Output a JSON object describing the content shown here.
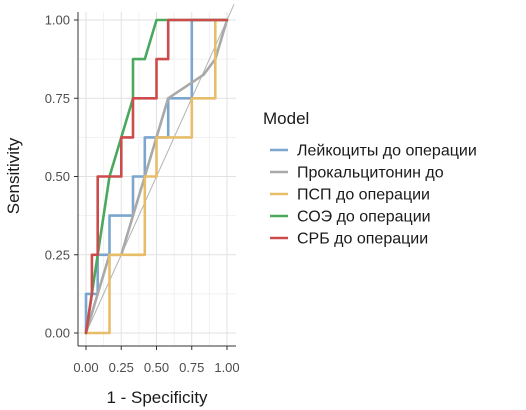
{
  "chart_data": {
    "type": "line",
    "xlabel": "1 - Specificity",
    "ylabel": "Sensitivity",
    "xlim": [
      0,
      1
    ],
    "ylim": [
      0,
      1
    ],
    "x_ticks": [
      "0.00",
      "0.25",
      "0.50",
      "0.75",
      "1.00"
    ],
    "y_ticks": [
      "0.00",
      "0.25",
      "0.50",
      "0.75",
      "1.00"
    ],
    "grid": true,
    "diagonal_reference": true,
    "legend": {
      "title": "Model",
      "position": "right"
    },
    "series": [
      {
        "name": "Лейкоциты до операции",
        "color": "#7ba6cf",
        "x": [
          0,
          0,
          0.083,
          0.083,
          0.167,
          0.167,
          0.25,
          0.25,
          0.333,
          0.333,
          0.417,
          0.417,
          0.5,
          0.5,
          0.583,
          0.583,
          0.667,
          0.667,
          0.75,
          0.75,
          0.833,
          0.833,
          0.917,
          0.917,
          1
        ],
        "y": [
          0,
          0.125,
          0.125,
          0.25,
          0.25,
          0.375,
          0.375,
          0.375,
          0.375,
          0.5,
          0.5,
          0.625,
          0.625,
          0.625,
          0.625,
          0.75,
          0.75,
          0.75,
          0.75,
          1,
          1,
          1,
          1,
          1,
          1
        ]
      },
      {
        "name": "Прокальцитонин до",
        "color": "#a9a9a9",
        "x": [
          0,
          0.083,
          0.167,
          0.25,
          0.333,
          0.417,
          0.5,
          0.583,
          0.667,
          0.75,
          0.833,
          0.917,
          1
        ],
        "y": [
          0,
          0.125,
          0.25,
          0.25,
          0.375,
          0.5,
          0.625,
          0.75,
          0.775,
          0.8,
          0.825,
          0.875,
          1
        ]
      },
      {
        "name": "ПСП до операции",
        "color": "#e8bd6a",
        "x": [
          0,
          0.167,
          0.167,
          0.25,
          0.25,
          0.333,
          0.333,
          0.417,
          0.417,
          0.5,
          0.5,
          0.583,
          0.583,
          0.667,
          0.667,
          0.75,
          0.75,
          0.833,
          0.833,
          0.917,
          0.917,
          1
        ],
        "y": [
          0,
          0,
          0.25,
          0.25,
          0.25,
          0.25,
          0.25,
          0.25,
          0.5,
          0.5,
          0.625,
          0.625,
          0.625,
          0.625,
          0.625,
          0.625,
          0.75,
          0.75,
          0.75,
          0.75,
          1,
          1
        ]
      },
      {
        "name": "СОЭ до операции",
        "color": "#4aa95f",
        "x": [
          0,
          0.083,
          0.083,
          0.167,
          0.25,
          0.333,
          0.333,
          0.417,
          0.417,
          0.5,
          1
        ],
        "y": [
          0,
          0.25,
          0.25,
          0.5,
          0.625,
          0.75,
          0.875,
          0.875,
          0.875,
          1,
          1
        ]
      },
      {
        "name": "СРБ до операции",
        "color": "#cc4c4c",
        "x": [
          0,
          0.042,
          0.042,
          0.083,
          0.083,
          0.167,
          0.167,
          0.25,
          0.25,
          0.333,
          0.333,
          0.417,
          0.417,
          0.5,
          0.5,
          0.583,
          0.583,
          1
        ],
        "y": [
          0,
          0.125,
          0.25,
          0.25,
          0.5,
          0.5,
          0.5,
          0.5,
          0.625,
          0.625,
          0.75,
          0.75,
          0.75,
          0.75,
          0.875,
          0.875,
          1,
          1
        ]
      }
    ]
  }
}
